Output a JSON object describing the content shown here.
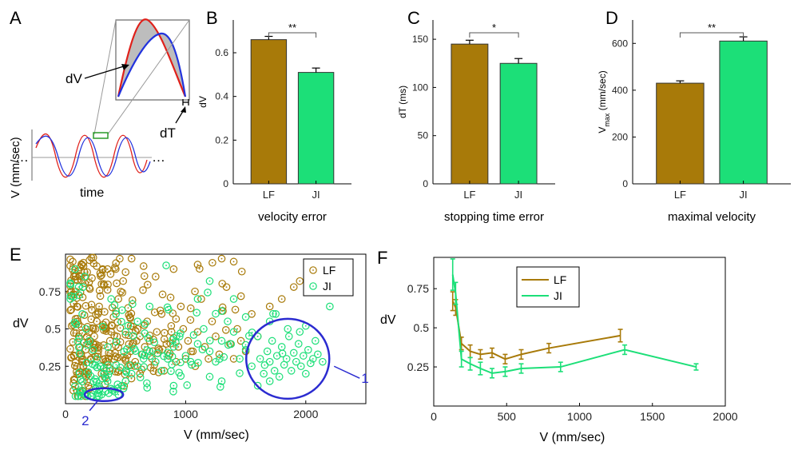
{
  "colors": {
    "LF": "#a87a09",
    "JI": "#1cdf78",
    "annotation_blue": "#2b2bd0",
    "red": "#e0201a",
    "blue": "#2233dd",
    "shade": "#bdbdbd"
  },
  "panels": {
    "A": "A",
    "B": "B",
    "C": "C",
    "D": "D",
    "E": "E",
    "F": "F"
  },
  "schematic": {
    "dV_label": "dV",
    "dT_label": "dT",
    "ylabel": "V (mm/sec)",
    "xlabel": "time",
    "dots": "…"
  },
  "chart_data": [
    {
      "id": "B",
      "type": "bar",
      "categories": [
        "LF",
        "JI"
      ],
      "values": [
        0.66,
        0.51
      ],
      "errors": [
        0.015,
        0.02
      ],
      "ylabel": "dV",
      "xlabel": "velocity error",
      "ylim": [
        0,
        0.75
      ],
      "yticks": [
        "0",
        "0.2",
        "0.4",
        "0.6"
      ],
      "significance": "**"
    },
    {
      "id": "C",
      "type": "bar",
      "categories": [
        "LF",
        "JI"
      ],
      "values": [
        145,
        125
      ],
      "errors": [
        4,
        5
      ],
      "ylabel": "dT (ms)",
      "xlabel": "stopping time error",
      "ylim": [
        0,
        170
      ],
      "yticks": [
        "0",
        "50",
        "100",
        "150"
      ],
      "significance": "*"
    },
    {
      "id": "D",
      "type": "bar",
      "categories": [
        "LF",
        "JI"
      ],
      "values": [
        430,
        610
      ],
      "errors": [
        10,
        18
      ],
      "ylabel": "V",
      "ylabel_sub": "max",
      "ylabel_unit": " (mm/sec)",
      "xlabel": "maximal velocity",
      "ylim": [
        0,
        700
      ],
      "yticks": [
        "0",
        "200",
        "400",
        "600"
      ],
      "significance": "**"
    },
    {
      "id": "E",
      "type": "scatter",
      "series": [
        {
          "name": "LF",
          "cluster": [
            [
              60,
              0.95
            ],
            [
              70,
              0.85
            ],
            [
              85,
              0.75
            ],
            [
              95,
              0.65
            ],
            [
              100,
              0.55
            ],
            [
              110,
              0.45
            ],
            [
              120,
              0.38
            ],
            [
              130,
              0.32
            ],
            [
              140,
              0.28
            ],
            [
              150,
              0.25
            ],
            [
              160,
              0.2
            ],
            [
              170,
              0.18
            ],
            [
              180,
              0.15
            ],
            [
              190,
              0.12
            ],
            [
              200,
              0.1
            ],
            [
              210,
              0.3
            ],
            [
              220,
              0.35
            ],
            [
              230,
              0.4
            ],
            [
              240,
              0.45
            ],
            [
              250,
              0.5
            ],
            [
              260,
              0.55
            ],
            [
              270,
              0.6
            ],
            [
              280,
              0.65
            ],
            [
              290,
              0.72
            ],
            [
              300,
              0.8
            ],
            [
              310,
              0.9
            ],
            [
              320,
              0.98
            ],
            [
              330,
              0.3
            ],
            [
              340,
              0.22
            ],
            [
              350,
              0.28
            ],
            [
              360,
              0.34
            ],
            [
              370,
              0.42
            ],
            [
              380,
              0.48
            ],
            [
              390,
              0.52
            ],
            [
              400,
              0.58
            ],
            [
              420,
              0.62
            ],
            [
              440,
              0.7
            ],
            [
              460,
              0.75
            ],
            [
              480,
              0.82
            ],
            [
              500,
              0.3
            ],
            [
              520,
              0.25
            ],
            [
              540,
              0.35
            ],
            [
              560,
              0.4
            ],
            [
              580,
              0.28
            ],
            [
              600,
              0.5
            ],
            [
              620,
              0.45
            ],
            [
              640,
              0.33
            ],
            [
              660,
              0.38
            ],
            [
              680,
              0.55
            ],
            [
              700,
              0.42
            ],
            [
              720,
              0.3
            ],
            [
              740,
              0.26
            ],
            [
              760,
              0.48
            ],
            [
              780,
              0.36
            ],
            [
              800,
              0.6
            ],
            [
              820,
              0.22
            ],
            [
              840,
              0.4
            ],
            [
              860,
              0.32
            ],
            [
              880,
              0.52
            ],
            [
              900,
              0.44
            ],
            [
              920,
              0.28
            ],
            [
              940,
              0.38
            ],
            [
              960,
              0.65
            ],
            [
              980,
              0.5
            ],
            [
              1000,
              0.3
            ],
            [
              1020,
              0.42
            ],
            [
              1040,
              0.56
            ],
            [
              1060,
              0.35
            ],
            [
              1080,
              0.25
            ],
            [
              1100,
              0.48
            ],
            [
              1130,
              0.7
            ],
            [
              1160,
              0.38
            ],
            [
              1190,
              0.3
            ],
            [
              1220,
              0.55
            ],
            [
              1250,
              0.45
            ],
            [
              1280,
              0.33
            ],
            [
              1310,
              0.62
            ],
            [
              1340,
              0.78
            ],
            [
              1370,
              0.4
            ],
            [
              1400,
              0.3
            ],
            [
              1430,
              0.5
            ],
            [
              1460,
              0.42
            ],
            [
              1500,
              0.35
            ],
            [
              1550,
              0.6
            ],
            [
              1600,
              0.45
            ],
            [
              1700,
              0.65
            ],
            [
              1800,
              0.7
            ],
            [
              1900,
              0.78
            ],
            [
              1950,
              0.82
            ],
            [
              1400,
              0.95
            ],
            [
              130,
              0.98
            ],
            [
              150,
              0.92
            ],
            [
              180,
              0.88
            ],
            [
              200,
              0.96
            ],
            [
              220,
              0.84
            ],
            [
              260,
              0.92
            ],
            [
              300,
              0.86
            ],
            [
              350,
              0.9
            ],
            [
              420,
              0.94
            ],
            [
              500,
              0.88
            ],
            [
              550,
              0.97
            ],
            [
              650,
              0.92
            ],
            [
              750,
              0.85
            ],
            [
              900,
              0.9
            ],
            [
              1100,
              0.93
            ],
            [
              1300,
              0.97
            ]
          ]
        },
        {
          "name": "JI",
          "cluster": [
            [
              80,
              0.9
            ],
            [
              110,
              0.78
            ],
            [
              140,
              0.6
            ],
            [
              170,
              0.5
            ],
            [
              200,
              0.42
            ],
            [
              230,
              0.36
            ],
            [
              260,
              0.3
            ],
            [
              290,
              0.25
            ],
            [
              320,
              0.2
            ],
            [
              350,
              0.15
            ],
            [
              380,
              0.1
            ],
            [
              410,
              0.08
            ],
            [
              440,
              0.06
            ],
            [
              270,
              0.07
            ],
            [
              300,
              0.06
            ],
            [
              330,
              0.08
            ],
            [
              360,
              0.07
            ],
            [
              390,
              0.09
            ],
            [
              250,
              0.1
            ],
            [
              470,
              0.12
            ],
            [
              500,
              0.15
            ],
            [
              550,
              0.2
            ],
            [
              600,
              0.25
            ],
            [
              650,
              0.3
            ],
            [
              700,
              0.35
            ],
            [
              750,
              0.28
            ],
            [
              800,
              0.22
            ],
            [
              850,
              0.3
            ],
            [
              900,
              0.38
            ],
            [
              950,
              0.45
            ],
            [
              1000,
              0.32
            ],
            [
              1050,
              0.26
            ],
            [
              1100,
              0.4
            ],
            [
              1150,
              0.5
            ],
            [
              1200,
              0.35
            ],
            [
              1250,
              0.28
            ],
            [
              1300,
              0.42
            ],
            [
              1350,
              0.55
            ],
            [
              1400,
              0.48
            ],
            [
              1450,
              0.3
            ],
            [
              1500,
              0.36
            ],
            [
              1550,
              0.25
            ],
            [
              1600,
              0.45
            ],
            [
              1620,
              0.3
            ],
            [
              1650,
              0.2
            ],
            [
              1680,
              0.35
            ],
            [
              1700,
              0.28
            ],
            [
              1720,
              0.42
            ],
            [
              1740,
              0.22
            ],
            [
              1760,
              0.32
            ],
            [
              1780,
              0.18
            ],
            [
              1800,
              0.38
            ],
            [
              1820,
              0.26
            ],
            [
              1840,
              0.3
            ],
            [
              1860,
              0.45
            ],
            [
              1880,
              0.22
            ],
            [
              1900,
              0.34
            ],
            [
              1920,
              0.28
            ],
            [
              1940,
              0.4
            ],
            [
              1960,
              0.25
            ],
            [
              1980,
              0.32
            ],
            [
              2000,
              0.2
            ],
            [
              2020,
              0.36
            ],
            [
              2040,
              0.27
            ],
            [
              2060,
              0.3
            ],
            [
              2080,
              0.42
            ],
            [
              2100,
              0.33
            ],
            [
              2140,
              0.28
            ],
            [
              2200,
              0.65
            ],
            [
              1700,
              0.55
            ],
            [
              1750,
              0.6
            ],
            [
              1850,
              0.5
            ],
            [
              1950,
              0.48
            ],
            [
              2000,
              0.52
            ],
            [
              1100,
              0.7
            ],
            [
              1200,
              0.82
            ],
            [
              1300,
              0.62
            ],
            [
              1400,
              0.7
            ],
            [
              1500,
              0.58
            ],
            [
              600,
              0.55
            ],
            [
              700,
              0.65
            ],
            [
              500,
              0.48
            ],
            [
              420,
              0.6
            ],
            [
              380,
              0.7
            ],
            [
              160,
              0.85
            ],
            [
              1200,
              0.18
            ],
            [
              1300,
              0.15
            ],
            [
              900,
              0.12
            ],
            [
              1600,
              0.12
            ],
            [
              1700,
              0.15
            ]
          ]
        }
      ],
      "xlabel": "V (mm/sec)",
      "ylabel": "dV",
      "xlim": [
        0,
        2500
      ],
      "ylim": [
        0,
        1.0
      ],
      "xticks": [
        "0",
        "1000",
        "2000"
      ],
      "yticks": [
        "0.25",
        "0.5",
        "0.75"
      ],
      "legend": "top-right",
      "annotations": [
        "1",
        "2"
      ]
    },
    {
      "id": "F",
      "type": "line",
      "series": [
        {
          "name": "LF",
          "x": [
            130,
            150,
            190,
            250,
            320,
            400,
            490,
            600,
            790,
            1280
          ],
          "y": [
            0.67,
            0.63,
            0.4,
            0.35,
            0.33,
            0.34,
            0.3,
            0.33,
            0.37,
            0.45
          ],
          "err": [
            0.06,
            0.05,
            0.04,
            0.04,
            0.03,
            0.03,
            0.03,
            0.03,
            0.03,
            0.04
          ]
        },
        {
          "name": "JI",
          "x": [
            130,
            150,
            190,
            250,
            320,
            400,
            490,
            600,
            870,
            1310,
            1800
          ],
          "y": [
            0.84,
            0.72,
            0.3,
            0.27,
            0.24,
            0.21,
            0.22,
            0.24,
            0.25,
            0.36,
            0.25
          ],
          "err": [
            0.1,
            0.07,
            0.05,
            0.04,
            0.04,
            0.03,
            0.03,
            0.03,
            0.03,
            0.03,
            0.02
          ]
        }
      ],
      "xlabel": "V (mm/sec)",
      "ylabel": "dV",
      "xlim": [
        0,
        2000
      ],
      "ylim": [
        0,
        0.95
      ],
      "xticks": [
        "0",
        "500",
        "1000",
        "1500",
        "2000"
      ],
      "yticks": [
        "0.25",
        "0.5",
        "0.75"
      ],
      "legend": "top-center"
    }
  ]
}
